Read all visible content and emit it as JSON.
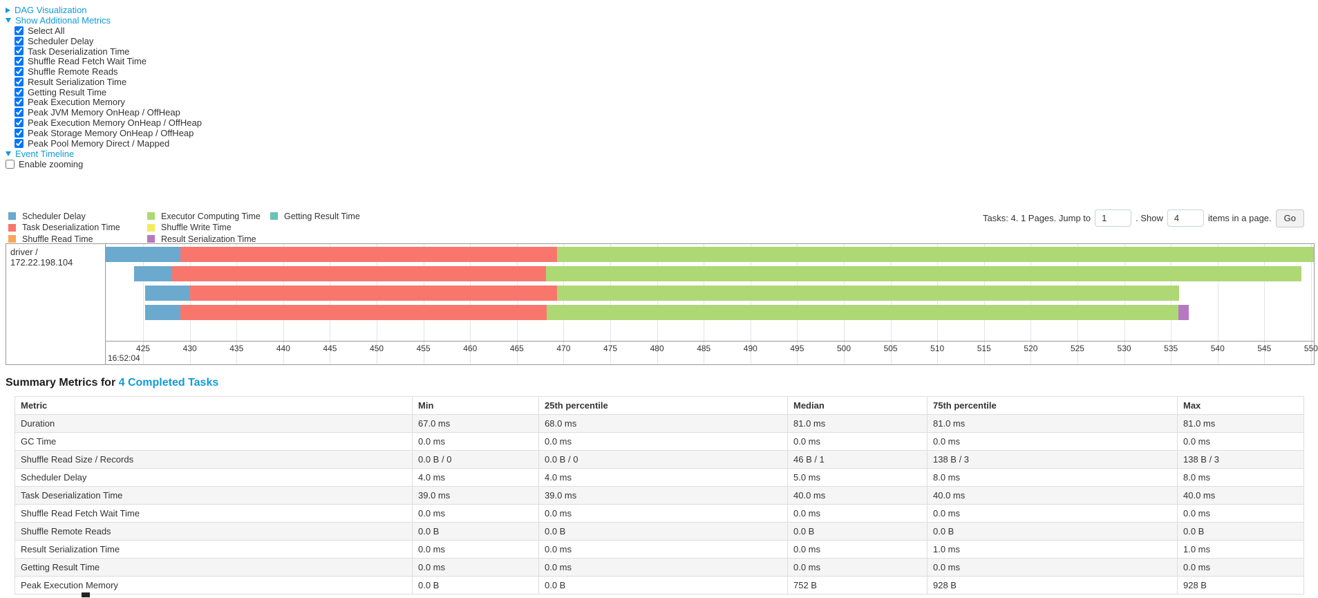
{
  "colors": {
    "link": "#0F9BD8",
    "scheduler_delay": "#6BA9CE",
    "task_deserialization": "#F9766D",
    "shuffle_read": "#FBA654",
    "executor_computing": "#AED873",
    "shuffle_write": "#F5EA5F",
    "result_serialization": "#B678C1",
    "getting_result": "#68C5B4",
    "grid": "#E4E4E4",
    "chart_border": "#999999"
  },
  "controls": {
    "dag_label": "DAG Visualization",
    "metrics_toggle_label": "Show Additional Metrics",
    "metric_checkboxes": [
      {
        "label": "Select All",
        "checked": true
      },
      {
        "label": "Scheduler Delay",
        "checked": true
      },
      {
        "label": "Task Deserialization Time",
        "checked": true
      },
      {
        "label": "Shuffle Read Fetch Wait Time",
        "checked": true
      },
      {
        "label": "Shuffle Remote Reads",
        "checked": true
      },
      {
        "label": "Result Serialization Time",
        "checked": true
      },
      {
        "label": "Getting Result Time",
        "checked": true
      },
      {
        "label": "Peak Execution Memory",
        "checked": true
      },
      {
        "label": "Peak JVM Memory OnHeap / OffHeap",
        "checked": true
      },
      {
        "label": "Peak Execution Memory OnHeap / OffHeap",
        "checked": true
      },
      {
        "label": "Peak Storage Memory OnHeap / OffHeap",
        "checked": true
      },
      {
        "label": "Peak Pool Memory Direct / Mapped",
        "checked": true
      }
    ],
    "event_timeline_label": "Event Timeline",
    "enable_zooming_label": "Enable zooming",
    "enable_zooming_checked": false
  },
  "pagination": {
    "prefix": "Tasks: 4. 1 Pages. Jump to",
    "jump_value": "1",
    "mid": ". Show",
    "show_value": "4",
    "suffix": "items in a page.",
    "go_label": "Go"
  },
  "legend": {
    "columns": [
      [
        {
          "key": "scheduler_delay",
          "label": "Scheduler Delay"
        },
        {
          "key": "task_deserialization",
          "label": "Task Deserialization Time"
        },
        {
          "key": "shuffle_read",
          "label": "Shuffle Read Time"
        }
      ],
      [
        {
          "key": "executor_computing",
          "label": "Executor Computing Time"
        },
        {
          "key": "shuffle_write",
          "label": "Shuffle Write Time"
        },
        {
          "key": "result_serialization",
          "label": "Result Serialization Time"
        }
      ],
      [
        {
          "key": "getting_result",
          "label": "Getting Result Time"
        }
      ]
    ]
  },
  "chart_data": {
    "type": "timeline",
    "row_label": "driver / 172.22.198.104",
    "x_axis": {
      "min": 421.0,
      "max": 550.3,
      "ticks": [
        425,
        430,
        435,
        440,
        445,
        450,
        455,
        460,
        465,
        470,
        475,
        480,
        485,
        490,
        495,
        500,
        505,
        510,
        515,
        520,
        525,
        530,
        535,
        540,
        545,
        550
      ],
      "start_time_label": "16:52:04"
    },
    "tasks": [
      {
        "segments": [
          [
            "scheduler_delay",
            421.0,
            429.0
          ],
          [
            "task_deserialization",
            429.0,
            469.3
          ],
          [
            "executor_computing",
            469.3,
            550.3
          ]
        ]
      },
      {
        "segments": [
          [
            "scheduler_delay",
            424.0,
            428.1
          ],
          [
            "task_deserialization",
            428.1,
            468.1
          ],
          [
            "executor_computing",
            468.1,
            549.0
          ]
        ]
      },
      {
        "segments": [
          [
            "scheduler_delay",
            425.2,
            430.0
          ],
          [
            "task_deserialization",
            430.0,
            469.3
          ],
          [
            "executor_computing",
            469.3,
            535.9
          ]
        ]
      },
      {
        "segments": [
          [
            "scheduler_delay",
            425.2,
            429.0
          ],
          [
            "task_deserialization",
            429.0,
            468.2
          ],
          [
            "executor_computing",
            468.2,
            535.8
          ],
          [
            "result_serialization",
            535.8,
            536.9
          ]
        ]
      }
    ]
  },
  "summary": {
    "title_prefix": "Summary Metrics for ",
    "title_link": "4 Completed Tasks",
    "table": {
      "headers": [
        "Metric",
        "Min",
        "25th percentile",
        "Median",
        "75th percentile",
        "Max"
      ],
      "rows": [
        [
          "Duration",
          "67.0 ms",
          "68.0 ms",
          "81.0 ms",
          "81.0 ms",
          "81.0 ms"
        ],
        [
          "GC Time",
          "0.0 ms",
          "0.0 ms",
          "0.0 ms",
          "0.0 ms",
          "0.0 ms"
        ],
        [
          "Shuffle Read Size / Records",
          "0.0 B / 0",
          "0.0 B / 0",
          "46 B / 1",
          "138 B / 3",
          "138 B / 3"
        ],
        [
          "Scheduler Delay",
          "4.0 ms",
          "4.0 ms",
          "5.0 ms",
          "8.0 ms",
          "8.0 ms"
        ],
        [
          "Task Deserialization Time",
          "39.0 ms",
          "39.0 ms",
          "40.0 ms",
          "40.0 ms",
          "40.0 ms"
        ],
        [
          "Shuffle Read Fetch Wait Time",
          "0.0 ms",
          "0.0 ms",
          "0.0 ms",
          "0.0 ms",
          "0.0 ms"
        ],
        [
          "Shuffle Remote Reads",
          "0.0 B",
          "0.0 B",
          "0.0 B",
          "0.0 B",
          "0.0 B"
        ],
        [
          "Result Serialization Time",
          "0.0 ms",
          "0.0 ms",
          "0.0 ms",
          "1.0 ms",
          "1.0 ms"
        ],
        [
          "Getting Result Time",
          "0.0 ms",
          "0.0 ms",
          "0.0 ms",
          "0.0 ms",
          "0.0 ms"
        ],
        [
          "Peak Execution Memory",
          "0.0 B",
          "0.0 B",
          "752 B",
          "928 B",
          "928 B"
        ]
      ]
    }
  }
}
